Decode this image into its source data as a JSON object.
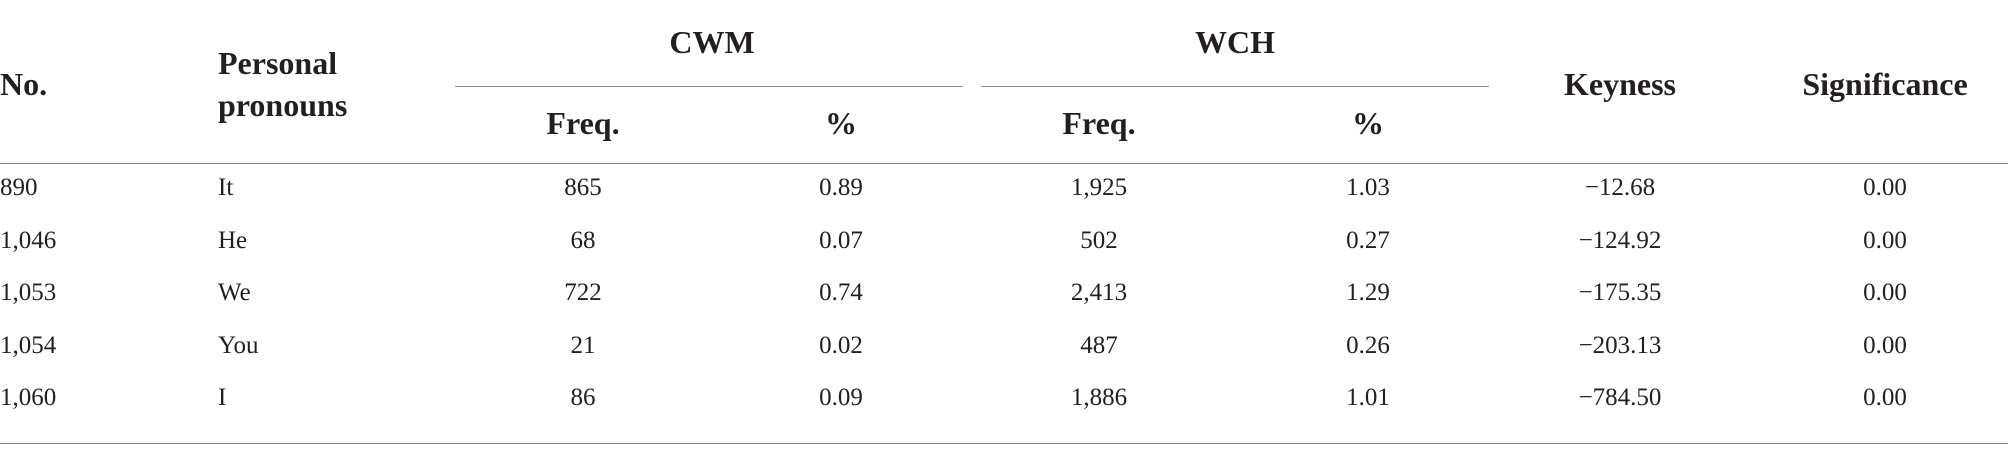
{
  "table": {
    "header": {
      "no": "No.",
      "pronouns": "Personal pronouns",
      "groups": [
        "CWM",
        "WCH"
      ],
      "sub": [
        "Freq.",
        "%",
        "Freq.",
        "%"
      ],
      "keyness": "Keyness",
      "significance": "Significance"
    },
    "rows": [
      [
        "890",
        "It",
        "865",
        "0.89",
        "1,925",
        "1.03",
        "−12.68",
        "0.00"
      ],
      [
        "1,046",
        "He",
        "68",
        "0.07",
        "502",
        "0.27",
        "−124.92",
        "0.00"
      ],
      [
        "1,053",
        "We",
        "722",
        "0.74",
        "2,413",
        "1.29",
        "−175.35",
        "0.00"
      ],
      [
        "1,054",
        "You",
        "21",
        "0.02",
        "487",
        "0.26",
        "−203.13",
        "0.00"
      ],
      [
        "1,060",
        "I",
        "86",
        "0.09",
        "1,886",
        "1.01",
        "−784.50",
        "0.00"
      ]
    ]
  }
}
